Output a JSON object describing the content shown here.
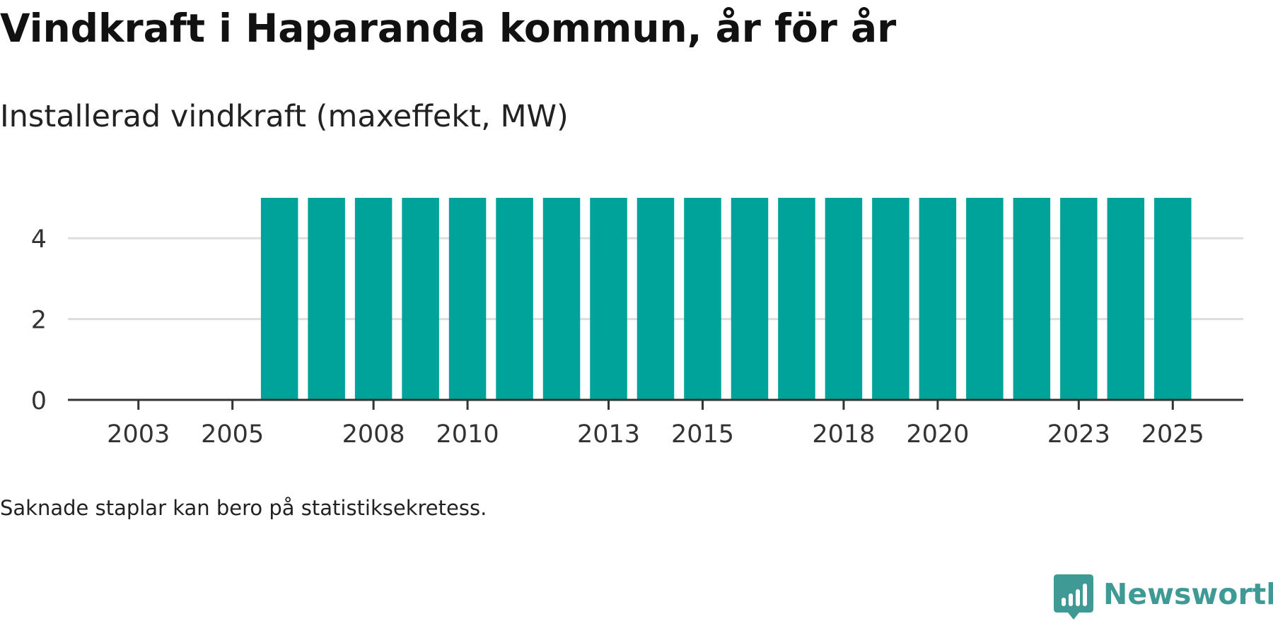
{
  "chart_data": {
    "type": "bar",
    "title": "Vindkraft i Haparanda kommun, år för år",
    "subtitle": "Installerad vindkraft (maxeffekt, MW)",
    "xlabel": "",
    "ylabel": "",
    "categories": [
      2002,
      2003,
      2004,
      2005,
      2006,
      2007,
      2008,
      2009,
      2010,
      2011,
      2012,
      2013,
      2014,
      2015,
      2016,
      2017,
      2018,
      2019,
      2020,
      2021,
      2022,
      2023,
      2024,
      2025,
      2026
    ],
    "values": [
      null,
      null,
      null,
      null,
      5,
      5,
      5,
      5,
      5,
      5,
      5,
      5,
      5,
      5,
      5,
      5,
      5,
      5,
      5,
      5,
      5,
      5,
      5,
      5,
      null
    ],
    "x_ticks": [
      2003,
      2005,
      2008,
      2010,
      2013,
      2015,
      2018,
      2020,
      2023,
      2025
    ],
    "y_ticks": [
      0,
      2,
      4
    ],
    "ylim": [
      0,
      5.8
    ],
    "grid": true,
    "bar_color": "#00a39a"
  },
  "note": "Saknade staplar kan bero på statistiksekretess.",
  "brand": {
    "name": "Newsworthy",
    "color": "#3f9a95"
  }
}
